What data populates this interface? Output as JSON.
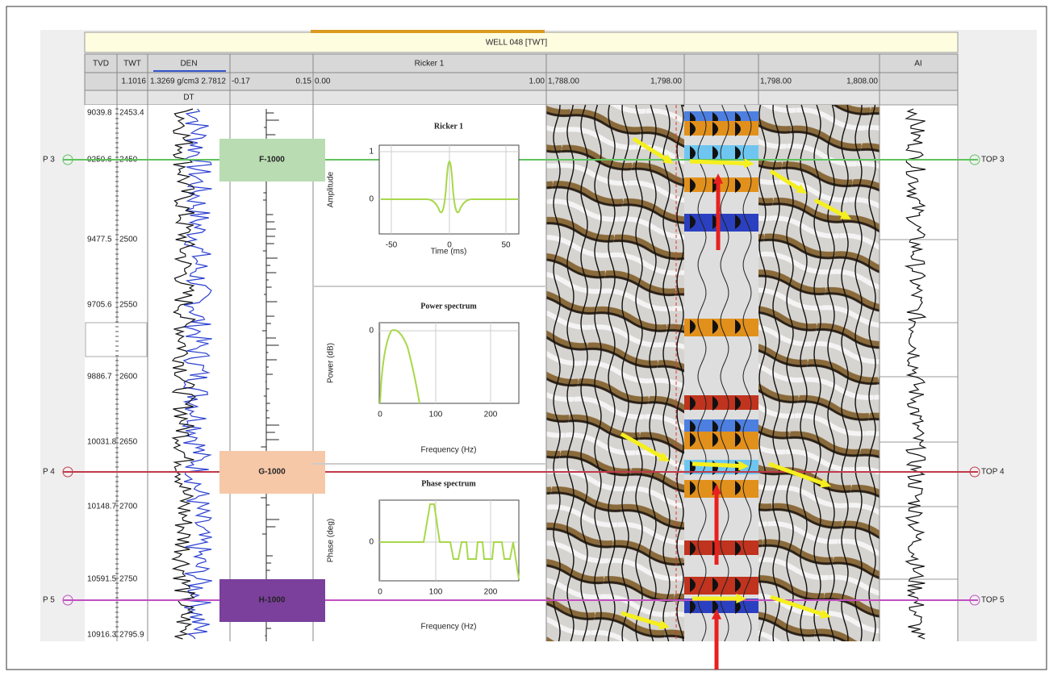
{
  "header": {
    "title": "WELL 048 [TWT]"
  },
  "columns": {
    "names": [
      "TVD",
      "TWT",
      "DEN",
      "Ricker 1",
      "AI"
    ],
    "values": [
      "1.1016",
      "1.3269 g/cm3 2.7812",
      "-0.17",
      "0.15",
      "0.00",
      "1.00",
      "1,788.00",
      "1,798.00",
      "1,798.00",
      "1,808.00"
    ],
    "sub": "DT"
  },
  "depth": {
    "twt": [
      "2453.4",
      "2450",
      "2500",
      "2550",
      "2600",
      "2650",
      "2700",
      "2750",
      "2795.9"
    ],
    "tvd": [
      "9039.8",
      "9250.6",
      "9477.5",
      "9705.6",
      "9886.7",
      "10031.8",
      "10148.7",
      "10591.5",
      "10916.3"
    ]
  },
  "markers": [
    {
      "left": "P 3",
      "right": "TOP 3",
      "zone": "F-1000"
    },
    {
      "left": "P 4",
      "right": "TOP 4",
      "zone": "G-1000"
    },
    {
      "left": "P 5",
      "right": "TOP 5",
      "zone": "H-1000"
    }
  ],
  "wavelet": {
    "panels": [
      {
        "title": "Ricker 1",
        "ylabel": "Amplitude",
        "xlabel": "Time (ms)",
        "xticks": [
          "-50",
          "0",
          "50"
        ],
        "yticks": [
          "1",
          "0"
        ]
      },
      {
        "title": "Power spectrum",
        "ylabel": "Power (dB)",
        "xlabel": "Frequency (Hz)",
        "xticks": [
          "0",
          "100",
          "200"
        ],
        "yticks": [
          "0"
        ]
      },
      {
        "title": "Phase spectrum",
        "ylabel": "Phase (deg)",
        "xlabel": "Frequency (Hz)",
        "xticks": [
          "0",
          "100",
          "200"
        ],
        "yticks": [
          "0"
        ]
      }
    ]
  }
}
